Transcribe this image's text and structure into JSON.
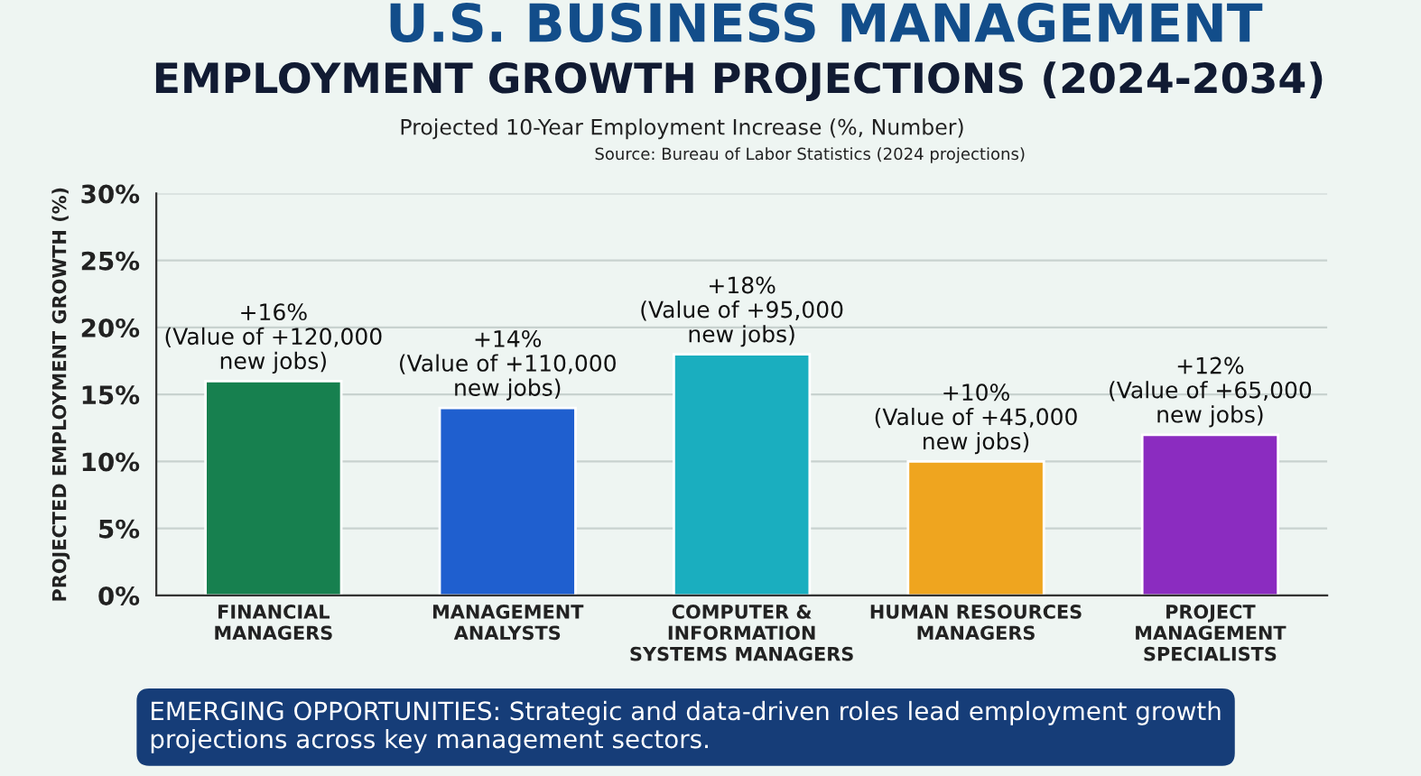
{
  "chart_data": {
    "type": "bar",
    "title": "U.S. BUSINESS MANAGEMENT",
    "subtitle": "EMPLOYMENT GROWTH PROJECTIONS (2024-2034)",
    "ylabel": "PROJECTED EMPLOYMENT GROWTH (%)",
    "categories": [
      "FINANCIAL\nMANAGERS",
      "MANAGEMENT\nANALYSTS",
      "COMPUTER &\nINFORMATION\nSYSTEMS MANAGERS",
      "HUMAN RESOURCES\nMANAGERS",
      "PROJECT\nMANAGEMENT\nSPECIALISTS"
    ],
    "values": [
      16,
      14,
      18,
      10,
      12
    ],
    "colors": [
      "#17804f",
      "#1f5fcf",
      "#1aaebf",
      "#efa51f",
      "#8b2cc0"
    ],
    "value_labels": [
      "+16%\n(Value of +120,000\nnew jobs)",
      "+14%\n(Value of +110,000\nnew jobs)",
      "+18%\n(Value of +95,000\nnew jobs)",
      "+10%\n(Value of +45,000\nnew jobs)",
      "+12%\n(Value of +65,000\nnew jobs)"
    ],
    "ylim": [
      0,
      30
    ],
    "yticks": [
      {
        "value": 0,
        "label": "0%"
      },
      {
        "value": 5,
        "label": "5%"
      },
      {
        "value": 10,
        "label": "10%"
      },
      {
        "value": 15,
        "label": "15%"
      },
      {
        "value": 20,
        "label": "20%"
      },
      {
        "value": 25,
        "label": "25%"
      },
      {
        "value": 30,
        "label": "30%"
      }
    ],
    "grid": "y",
    "annotations": [
      "Projected 10-Year Employment Increase (%, Number)",
      "Source: Bureau of Labor Statistics (2024 projections)",
      "EMERGING OPPORTUNITIES: Strategic and data-driven roles lead employment growth\nprojections across key management sectors."
    ]
  }
}
